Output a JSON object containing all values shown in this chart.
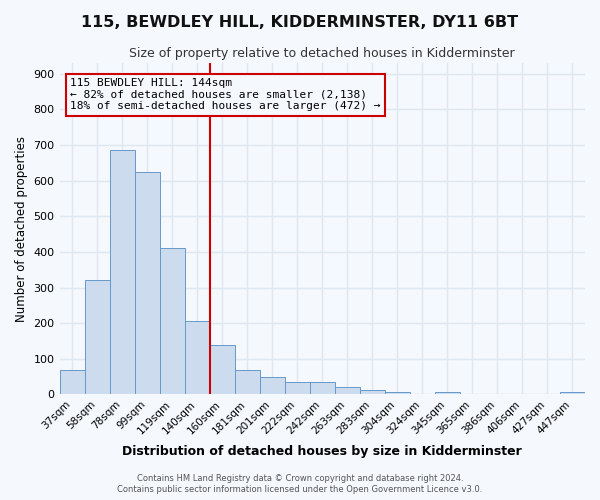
{
  "title": "115, BEWDLEY HILL, KIDDERMINSTER, DY11 6BT",
  "subtitle": "Size of property relative to detached houses in Kidderminster",
  "xlabel": "Distribution of detached houses by size in Kidderminster",
  "ylabel": "Number of detached properties",
  "categories": [
    "37sqm",
    "58sqm",
    "78sqm",
    "99sqm",
    "119sqm",
    "140sqm",
    "160sqm",
    "181sqm",
    "201sqm",
    "222sqm",
    "242sqm",
    "263sqm",
    "283sqm",
    "304sqm",
    "324sqm",
    "345sqm",
    "365sqm",
    "386sqm",
    "406sqm",
    "427sqm",
    "447sqm"
  ],
  "values": [
    70,
    320,
    685,
    625,
    410,
    205,
    138,
    70,
    48,
    35,
    35,
    22,
    12,
    7,
    0,
    7,
    0,
    0,
    0,
    0,
    8
  ],
  "bar_color": "#ccdcee",
  "bar_edge_color": "#6699cc",
  "vline_color": "#cc0000",
  "vline_index": 5.5,
  "annotation_line1": "115 BEWDLEY HILL: 144sqm",
  "annotation_line2": "← 82% of detached houses are smaller (2,138)",
  "annotation_line3": "18% of semi-detached houses are larger (472) →",
  "annotation_box_edge": "#cc0000",
  "ylim": [
    0,
    930
  ],
  "yticks": [
    0,
    100,
    200,
    300,
    400,
    500,
    600,
    700,
    800,
    900
  ],
  "bg_color": "#f5f8fc",
  "grid_color": "#dde8f0",
  "footer1": "Contains HM Land Registry data © Crown copyright and database right 2024.",
  "footer2": "Contains public sector information licensed under the Open Government Licence v3.0."
}
